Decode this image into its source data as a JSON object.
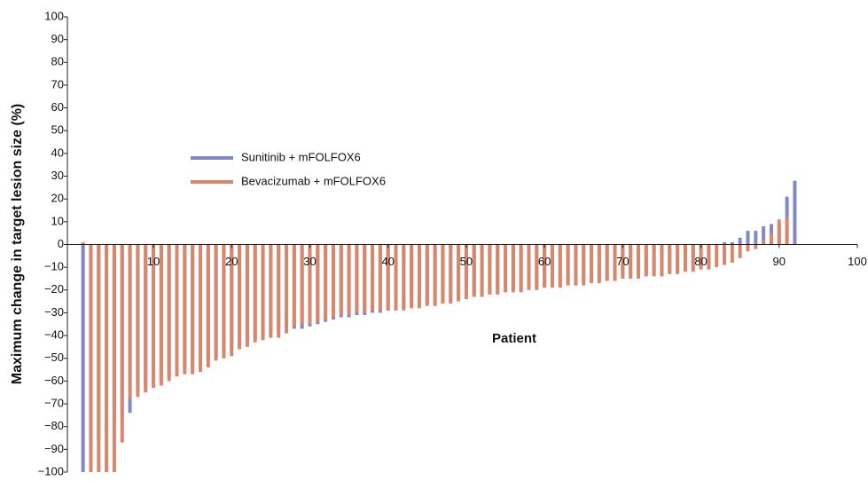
{
  "chart_data": {
    "type": "bar",
    "x_label": "Patient",
    "y_label": "Maximum change in target lesion size (%)",
    "xlim": [
      -1,
      100
    ],
    "xticks": [
      10,
      20,
      30,
      40,
      50,
      60,
      70,
      80,
      90,
      100
    ],
    "ylim": [
      -100,
      100
    ],
    "yticks": [
      {
        "value": -100,
        "label": "−100"
      },
      {
        "value": -90,
        "label": "−90"
      },
      {
        "value": -80,
        "label": "−80"
      },
      {
        "value": -70,
        "label": "−70"
      },
      {
        "value": -60,
        "label": "−60"
      },
      {
        "value": -50,
        "label": "−50"
      },
      {
        "value": -40,
        "label": "−40"
      },
      {
        "value": -30,
        "label": "−30"
      },
      {
        "value": -20,
        "label": "−20"
      },
      {
        "value": -10,
        "label": "−10"
      },
      0,
      10,
      20,
      30,
      40,
      50,
      60,
      70,
      80,
      90,
      100
    ],
    "series": [
      {
        "name": "Sunitinib + mFOLFOX6",
        "color": "#8088c8",
        "x": [
          1,
          2,
          3,
          4,
          5,
          6,
          7,
          8,
          9,
          10,
          11,
          12,
          13,
          14,
          15,
          16,
          17,
          18,
          19,
          20,
          21,
          22,
          23,
          24,
          25,
          26,
          27,
          28,
          29,
          30,
          31,
          32,
          33,
          34,
          35,
          36,
          37,
          38,
          39,
          40,
          41,
          42,
          43,
          44,
          45,
          46,
          47,
          48,
          49,
          50,
          51,
          52,
          53,
          54,
          55,
          56,
          57,
          58,
          59,
          60,
          61,
          62,
          63,
          64,
          65,
          66,
          67,
          68,
          69,
          70,
          71,
          72,
          73,
          74,
          75,
          76,
          77,
          78,
          79,
          80,
          81,
          82,
          83,
          84,
          85,
          86,
          87,
          88,
          89,
          90,
          91,
          92
        ],
        "values": [
          -100,
          -90,
          -86,
          -82,
          -78,
          -75,
          -74,
          -65,
          -63,
          -61,
          -60,
          -58,
          -56,
          -55,
          -54,
          -53,
          -51,
          -49,
          -48,
          -46,
          -44,
          -43,
          -41,
          -40,
          -39,
          -38,
          -37,
          -37,
          -37,
          -36,
          -35,
          -34,
          -33,
          -32,
          -32,
          -31,
          -31,
          -30,
          -30,
          -29,
          -28,
          -28,
          -27,
          -27,
          -26,
          -26,
          -25,
          -25,
          -24,
          -23,
          -22,
          -22,
          -21,
          -21,
          -20,
          -20,
          -20,
          -19,
          -19,
          -18,
          -18,
          -18,
          -17,
          -17,
          -17,
          -16,
          -16,
          -15,
          -15,
          -14,
          -14,
          -14,
          -13,
          -13,
          -13,
          -12,
          -12,
          -11,
          -11,
          -10,
          -9,
          0,
          1,
          1,
          3,
          6,
          6,
          8,
          9,
          9,
          21,
          28
        ]
      },
      {
        "name": "Bevacizumab + mFOLFOX6",
        "color": "#d9876a",
        "x": [
          1,
          2,
          3,
          4,
          5,
          6,
          7,
          8,
          9,
          10,
          11,
          12,
          13,
          14,
          15,
          16,
          17,
          18,
          19,
          20,
          21,
          22,
          23,
          24,
          25,
          26,
          27,
          28,
          29,
          30,
          31,
          32,
          33,
          34,
          35,
          36,
          37,
          38,
          39,
          40,
          41,
          42,
          43,
          44,
          45,
          46,
          47,
          48,
          49,
          50,
          51,
          52,
          53,
          54,
          55,
          56,
          57,
          58,
          59,
          60,
          61,
          62,
          63,
          64,
          65,
          66,
          67,
          68,
          69,
          70,
          71,
          72,
          73,
          74,
          75,
          76,
          77,
          78,
          79,
          80,
          81,
          82,
          83,
          84,
          85,
          86,
          87,
          88,
          89,
          90,
          91
        ],
        "values": [
          1,
          -100,
          -100,
          -100,
          -100,
          -87,
          -68,
          -67,
          -65,
          -63,
          -62,
          -60,
          -58,
          -57,
          -57,
          -56,
          -54,
          -51,
          -50,
          -49,
          -46,
          -45,
          -43,
          -42,
          -41,
          -41,
          -39,
          -36,
          -35,
          -35,
          -34,
          -33,
          -32,
          -31,
          -31,
          -30,
          -30,
          -29,
          -29,
          -29,
          -29,
          -29,
          -28,
          -28,
          -27,
          -27,
          -26,
          -26,
          -25,
          -24,
          -23,
          -23,
          -22,
          -22,
          -21,
          -21,
          -21,
          -20,
          -20,
          -19,
          -19,
          -19,
          -18,
          -18,
          -18,
          -17,
          -17,
          -16,
          -16,
          -15,
          -15,
          -15,
          -14,
          -14,
          -14,
          -13,
          -13,
          -12,
          -12,
          -11,
          -11,
          -10,
          -9,
          -8,
          -6,
          -3,
          -2,
          2,
          5,
          11,
          12
        ]
      }
    ]
  }
}
